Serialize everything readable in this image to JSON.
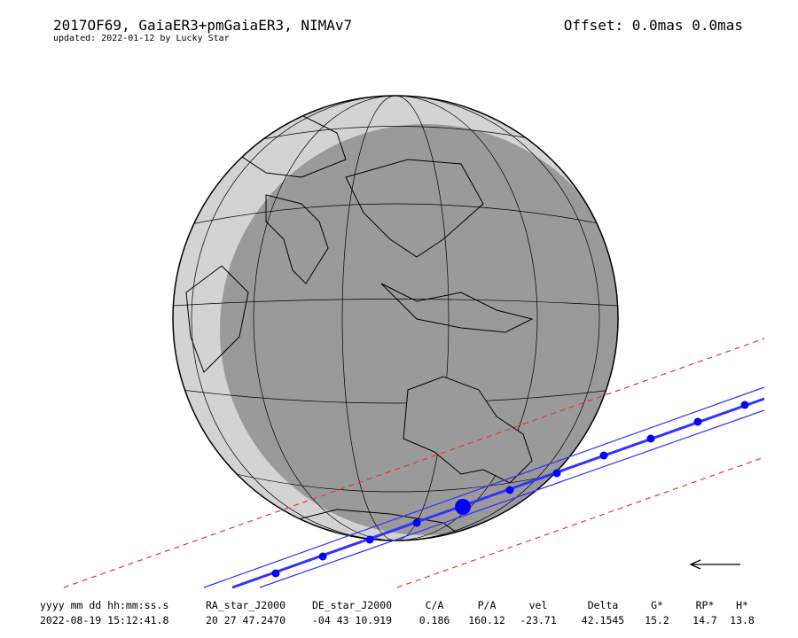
{
  "header": {
    "title": "2017OF69, GaiaER3+pmGaiaER3, NIMAv7",
    "updated": "updated: 2022-01-12 by Lucky Star",
    "offset": "Offset: 0.0mas 0.0mas"
  },
  "table": {
    "columns": [
      "yyyy mm dd hh:mm:ss.s",
      "RA_star_J2000",
      "DE_star_J2000",
      "C/A",
      "P/A",
      "vel",
      "Delta",
      "G*",
      "RP*",
      "H*"
    ],
    "rows": [
      [
        "2022-08-19 15:12:41.8",
        "20 27 47.2470",
        "-04 43 10.919",
        "0.186",
        "160.12",
        "-23.71",
        "42.1545",
        "15.2",
        "14.7",
        "13.8"
      ]
    ]
  }
}
